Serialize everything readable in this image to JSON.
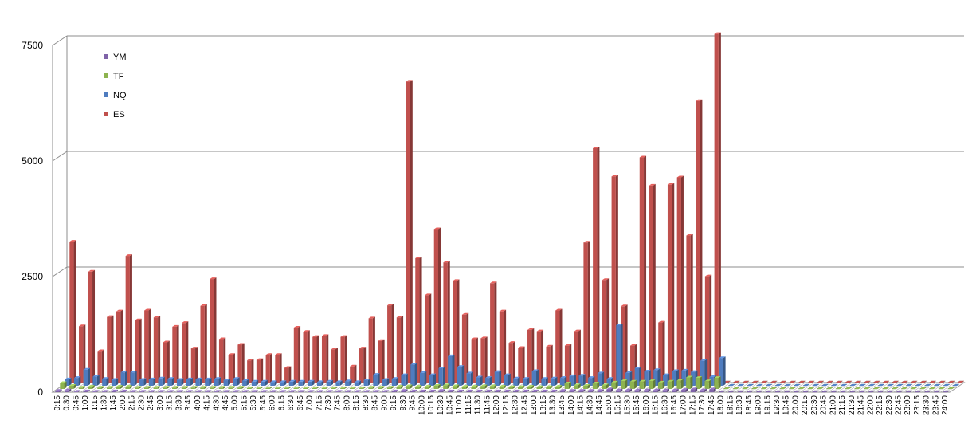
{
  "chart_data": {
    "type": "bar",
    "title": "",
    "xlabel": "",
    "ylabel": "",
    "ylim": [
      0,
      7500
    ],
    "yticks": [
      0,
      2500,
      5000,
      7500
    ],
    "ytick_labels": [
      "0",
      "2500",
      "5000",
      "7500"
    ],
    "grid": "horizontal",
    "legend_position": "top-left",
    "x": [
      "0:15",
      "0:30",
      "0:45",
      "1:00",
      "1:15",
      "1:30",
      "1:45",
      "2:00",
      "2:15",
      "2:30",
      "2:45",
      "3:00",
      "3:15",
      "3:30",
      "3:45",
      "4:00",
      "4:15",
      "4:30",
      "4:45",
      "5:00",
      "5:15",
      "5:30",
      "5:45",
      "6:00",
      "6:15",
      "6:30",
      "6:45",
      "7:00",
      "7:15",
      "7:30",
      "7:45",
      "8:00",
      "8:15",
      "8:30",
      "8:45",
      "9:00",
      "9:15",
      "9:30",
      "9:45",
      "10:00",
      "10:15",
      "10:30",
      "10:45",
      "11:00",
      "11:15",
      "11:30",
      "11:45",
      "12:00",
      "12:15",
      "12:30",
      "12:45",
      "13:00",
      "13:15",
      "13:30",
      "13:45",
      "14:00",
      "14:15",
      "14:30",
      "14:45",
      "15:00",
      "15:15",
      "15:30",
      "15:45",
      "16:00",
      "16:15",
      "16:30",
      "16:45",
      "17:00",
      "17:15",
      "17:30",
      "17:45",
      "18:00",
      "18:15",
      "18:30",
      "18:45",
      "19:00",
      "19:15",
      "19:30",
      "19:45",
      "20:00",
      "20:15",
      "20:30",
      "20:45",
      "21:00",
      "21:15",
      "21:30",
      "21:45",
      "22:00",
      "22:15",
      "22:30",
      "22:45",
      "23:00",
      "23:15",
      "23:30",
      "23:45",
      "24:00"
    ],
    "series": [
      {
        "name": "YM",
        "color": "#7f63a8",
        "values": [
          30,
          40,
          10,
          20,
          10,
          10,
          20,
          20,
          10,
          10,
          10,
          10,
          10,
          10,
          10,
          10,
          10,
          10,
          10,
          10,
          10,
          10,
          10,
          10,
          10,
          10,
          10,
          10,
          10,
          10,
          10,
          10,
          10,
          10,
          10,
          10,
          20,
          30,
          20,
          20,
          20,
          30,
          20,
          20,
          20,
          20,
          20,
          20,
          20,
          20,
          20,
          20,
          20,
          20,
          30,
          30,
          30,
          30,
          30,
          60,
          40,
          40,
          40,
          40,
          40,
          40,
          40,
          50,
          60,
          40,
          60,
          0,
          0,
          0,
          0,
          0,
          0,
          0,
          0,
          0,
          0,
          0,
          0,
          0,
          0,
          0,
          0,
          0,
          0,
          0,
          0,
          0,
          0,
          0,
          0,
          0
        ]
      },
      {
        "name": "TF",
        "color": "#8db34f",
        "values": [
          130,
          70,
          30,
          50,
          30,
          30,
          50,
          50,
          30,
          30,
          30,
          30,
          30,
          30,
          30,
          30,
          30,
          30,
          30,
          30,
          20,
          20,
          20,
          20,
          20,
          20,
          20,
          20,
          20,
          20,
          20,
          20,
          20,
          30,
          30,
          30,
          50,
          60,
          50,
          50,
          70,
          80,
          60,
          50,
          50,
          60,
          60,
          50,
          40,
          40,
          50,
          40,
          40,
          50,
          120,
          80,
          70,
          120,
          80,
          140,
          170,
          160,
          160,
          170,
          140,
          160,
          180,
          250,
          240,
          170,
          240,
          0,
          0,
          0,
          0,
          0,
          0,
          0,
          0,
          0,
          0,
          0,
          0,
          0,
          0,
          0,
          0,
          0,
          0,
          0,
          0,
          0,
          0,
          0,
          0,
          0
        ]
      },
      {
        "name": "NQ",
        "color": "#4f7cbf",
        "values": [
          140,
          170,
          350,
          200,
          150,
          130,
          290,
          290,
          130,
          140,
          160,
          150,
          130,
          140,
          140,
          140,
          150,
          120,
          150,
          110,
          90,
          90,
          80,
          80,
          90,
          90,
          90,
          80,
          90,
          80,
          100,
          80,
          120,
          240,
          130,
          150,
          230,
          460,
          280,
          230,
          380,
          640,
          410,
          270,
          180,
          170,
          300,
          230,
          160,
          150,
          320,
          150,
          160,
          170,
          210,
          220,
          170,
          270,
          150,
          1310,
          280,
          380,
          310,
          340,
          230,
          320,
          330,
          300,
          540,
          190,
          600,
          0,
          0,
          0,
          0,
          0,
          0,
          0,
          0,
          0,
          0,
          0,
          0,
          0,
          0,
          0,
          0,
          0,
          0,
          0,
          0,
          0,
          0,
          0,
          0,
          0
        ]
      },
      {
        "name": "ES",
        "color": "#c0504d",
        "values": [
          3050,
          1220,
          2400,
          680,
          1420,
          1540,
          2740,
          1350,
          1560,
          1410,
          870,
          1210,
          1290,
          740,
          1660,
          2240,
          940,
          600,
          820,
          480,
          490,
          600,
          600,
          320,
          1190,
          1100,
          990,
          1010,
          720,
          990,
          350,
          740,
          1390,
          900,
          1670,
          1410,
          6510,
          2690,
          1890,
          3320,
          2600,
          2200,
          1470,
          940,
          960,
          2150,
          1540,
          860,
          750,
          1140,
          1110,
          780,
          1560,
          800,
          1110,
          3030,
          5070,
          2220,
          4460,
          1650,
          800,
          4870,
          4260,
          1300,
          4280,
          4440,
          3180,
          6090,
          2300,
          7540,
          0,
          0,
          0,
          0,
          0,
          0,
          0,
          0,
          0,
          0,
          0,
          0,
          0,
          0,
          0,
          0,
          0,
          0,
          0,
          0,
          0,
          0,
          0,
          0,
          0,
          0
        ]
      }
    ],
    "legend_order": [
      "YM",
      "TF",
      "NQ",
      "ES"
    ]
  }
}
